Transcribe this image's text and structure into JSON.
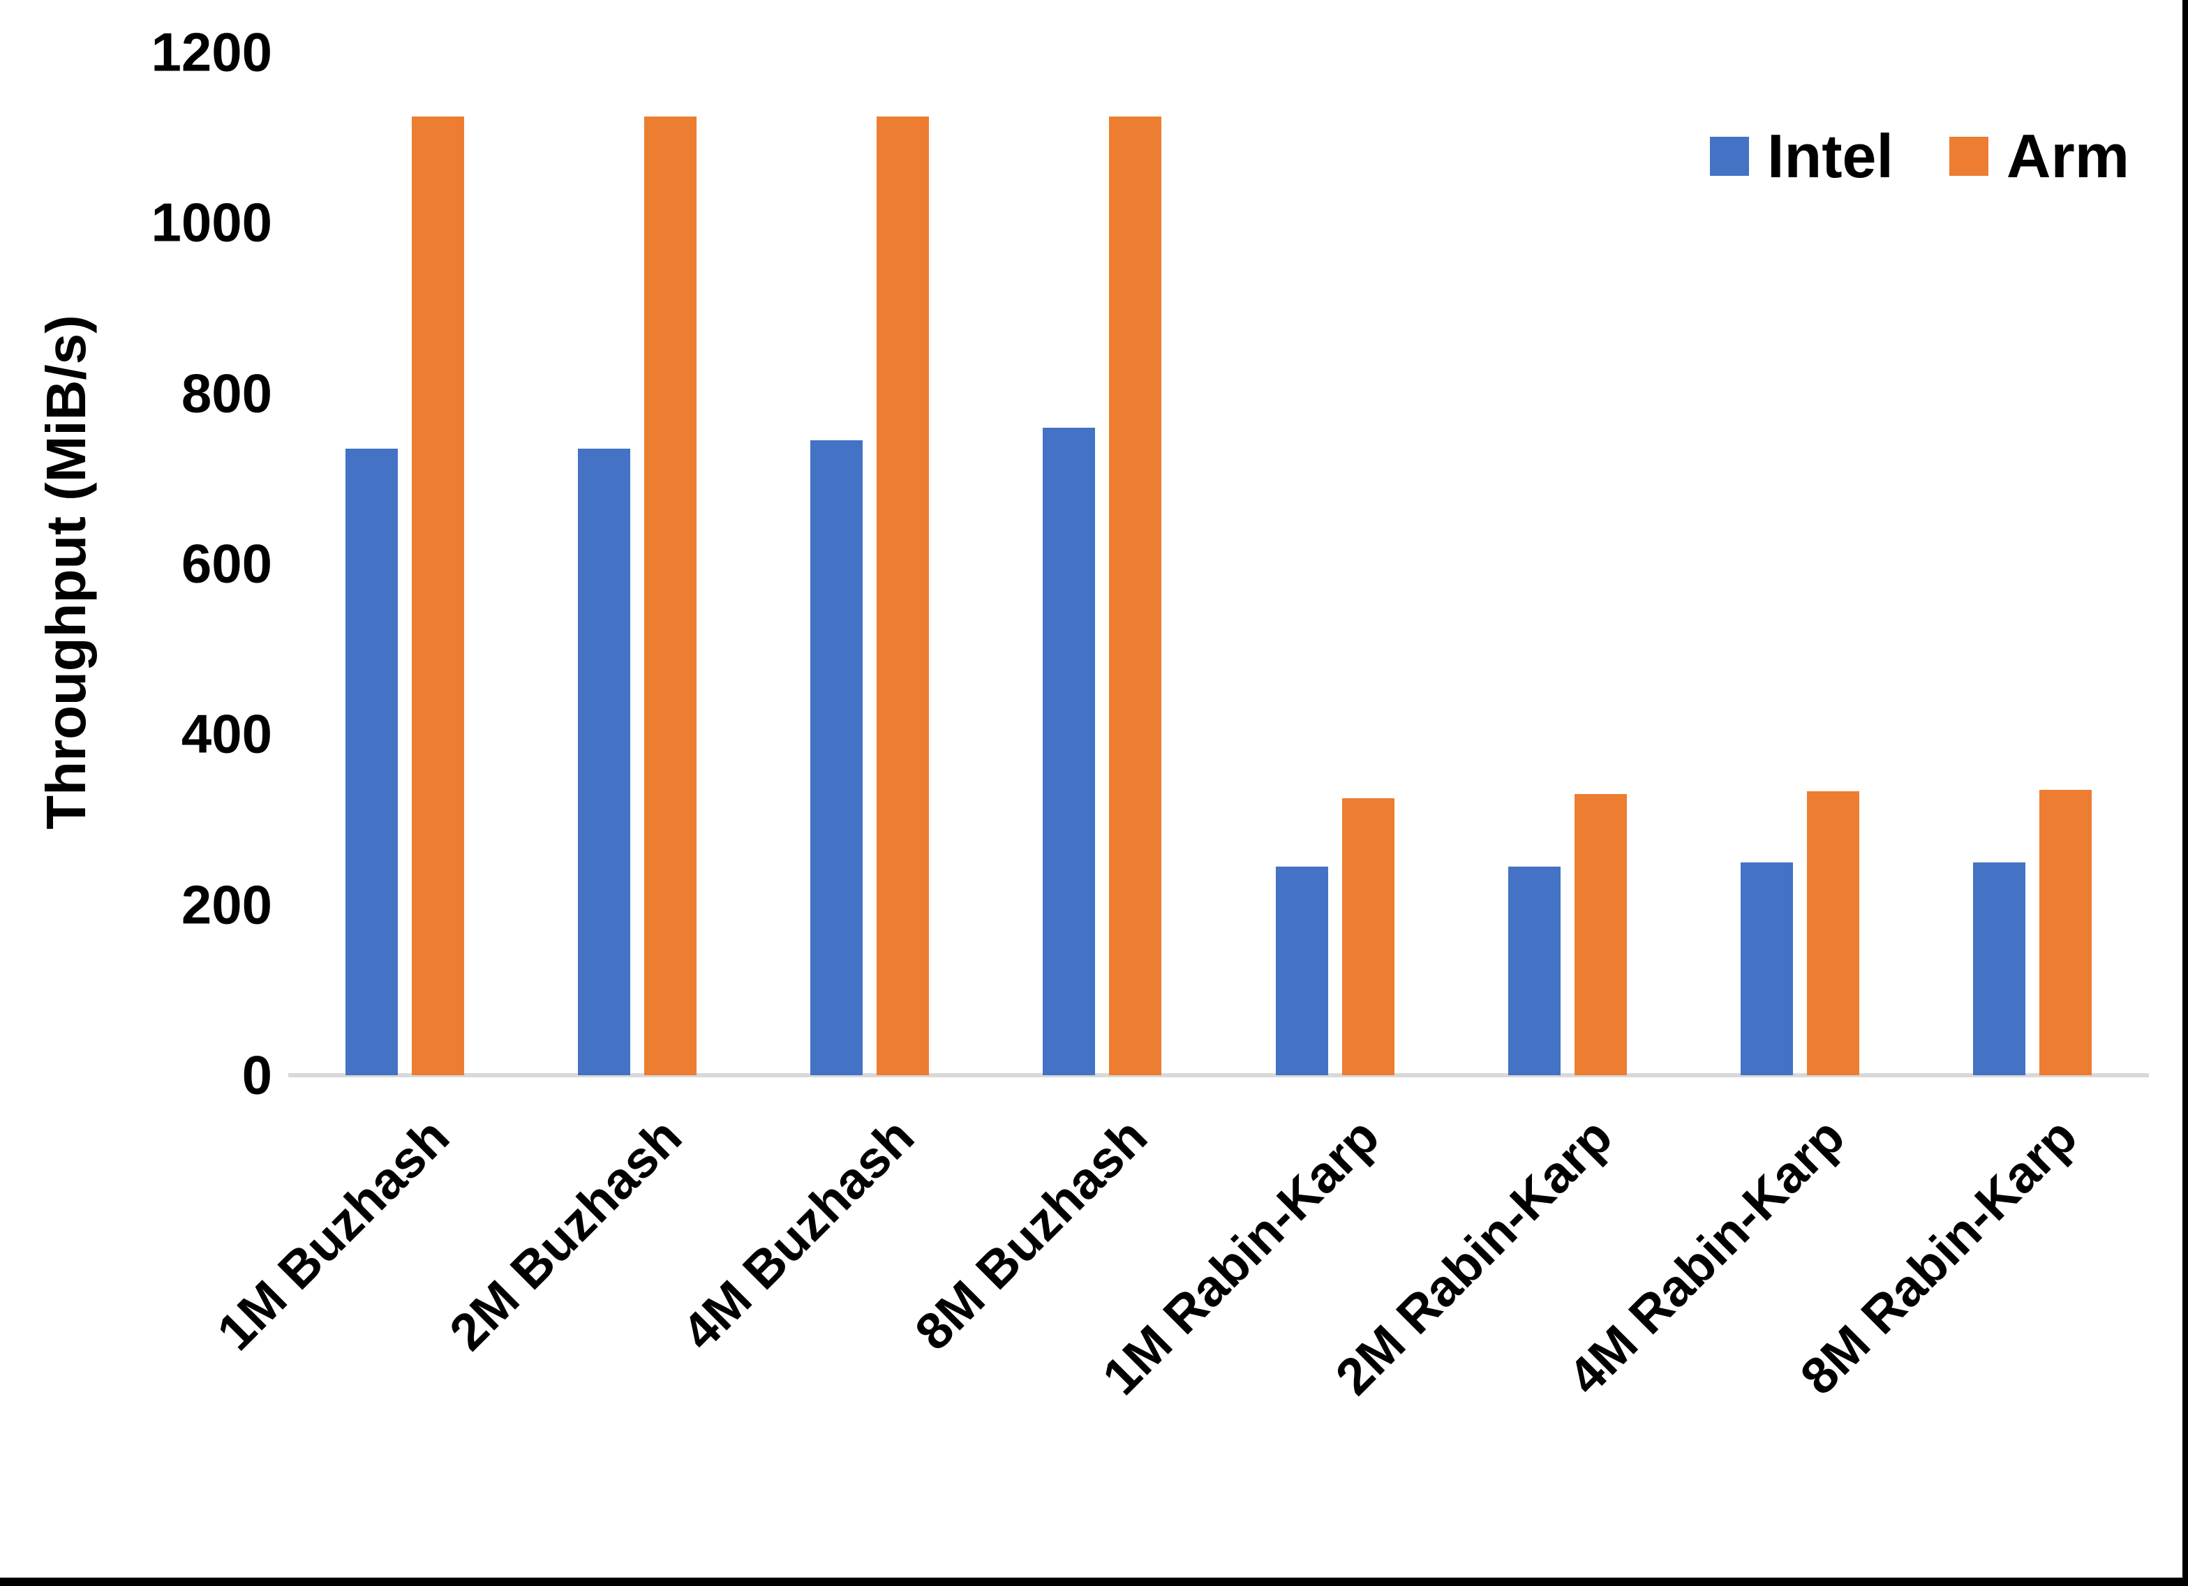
{
  "figure": {
    "background": "#FFFFFF",
    "border_color": "#000000",
    "axis_line_color": "#D9D9D9",
    "text_color": "#000000"
  },
  "legend": {
    "items": [
      {
        "label": "Intel",
        "color": "#4472C4"
      },
      {
        "label": "Arm",
        "color": "#ED7D31"
      }
    ]
  },
  "chart_data": {
    "type": "bar",
    "title": "",
    "xlabel": "",
    "ylabel": "Throughput (MiB/s)",
    "ylim": [
      0,
      1200
    ],
    "yticks": [
      0,
      200,
      400,
      600,
      800,
      1000,
      1200
    ],
    "grid": false,
    "legend_position": "top-right",
    "categories": [
      "1M Buzhash",
      "2M Buzhash",
      "4M Buzhash",
      "8M Buzhash",
      "1M Rabin-Karp",
      "2M Rabin-Karp",
      "4M Rabin-Karp",
      "8M Rabin-Karp"
    ],
    "series": [
      {
        "name": "Intel",
        "color": "#4472C4",
        "values": [
          735,
          735,
          745,
          760,
          245,
          245,
          250,
          250
        ]
      },
      {
        "name": "Arm",
        "color": "#ED7D31",
        "values": [
          1125,
          1125,
          1125,
          1125,
          325,
          330,
          333,
          335
        ]
      }
    ]
  }
}
